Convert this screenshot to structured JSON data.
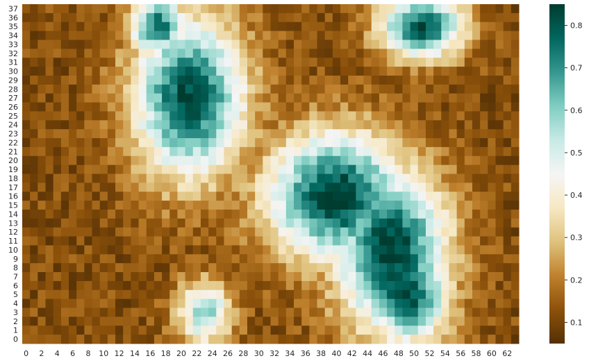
{
  "chart_data": {
    "type": "heatmap",
    "title": "",
    "xlabel": "",
    "ylabel": "",
    "n_cols": 64,
    "n_rows": 38,
    "x_tick_labels": [
      "0",
      "2",
      "4",
      "6",
      "8",
      "10",
      "12",
      "14",
      "16",
      "18",
      "20",
      "22",
      "24",
      "26",
      "28",
      "30",
      "32",
      "34",
      "36",
      "38",
      "40",
      "42",
      "44",
      "46",
      "48",
      "50",
      "52",
      "54",
      "56",
      "58",
      "60",
      "62"
    ],
    "y_tick_labels": [
      "37",
      "36",
      "35",
      "34",
      "33",
      "32",
      "31",
      "30",
      "29",
      "28",
      "27",
      "26",
      "25",
      "24",
      "23",
      "22",
      "21",
      "20",
      "19",
      "18",
      "17",
      "16",
      "15",
      "14",
      "13",
      "12",
      "11",
      "10",
      "9",
      "8",
      "7",
      "6",
      "5",
      "4",
      "3",
      "2",
      "1",
      "0"
    ],
    "colormap": "BrBG",
    "vmin": 0.05,
    "vmax": 0.85,
    "colorbar_ticks": [
      "0.1",
      "0.2",
      "0.3",
      "0.4",
      "0.5",
      "0.6",
      "0.7",
      "0.8"
    ],
    "colorbar_tick_values": [
      0.1,
      0.2,
      0.3,
      0.4,
      0.5,
      0.6,
      0.7,
      0.8
    ],
    "blobs": [
      {
        "center_x": 21,
        "center_y": 27,
        "radius_x": 4,
        "radius_y": 5,
        "peak": 0.82
      },
      {
        "center_x": 17,
        "center_y": 35,
        "radius_x": 2,
        "radius_y": 2,
        "peak": 0.75
      },
      {
        "center_x": 40,
        "center_y": 16,
        "radius_x": 5,
        "radius_y": 4,
        "peak": 0.85
      },
      {
        "center_x": 47,
        "center_y": 10,
        "radius_x": 4,
        "radius_y": 5,
        "peak": 0.85
      },
      {
        "center_x": 49,
        "center_y": 5,
        "radius_x": 3,
        "radius_y": 3,
        "peak": 0.83
      },
      {
        "center_x": 51,
        "center_y": 35,
        "radius_x": 3,
        "radius_y": 2,
        "peak": 0.8
      },
      {
        "center_x": 23,
        "center_y": 3,
        "radius_x": 2,
        "radius_y": 2,
        "peak": 0.6
      }
    ],
    "background_low": 0.12,
    "noise": 0.06
  }
}
